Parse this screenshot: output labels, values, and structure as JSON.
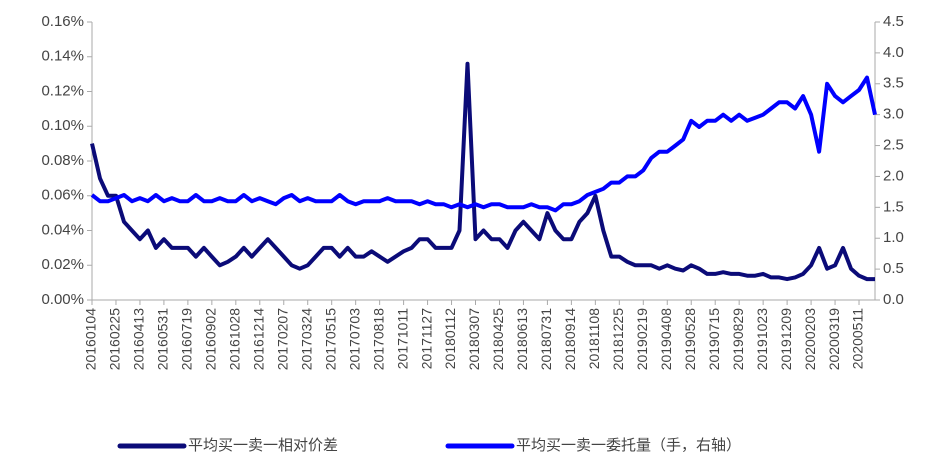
{
  "chart_data": {
    "type": "line",
    "categories": [
      "20160104",
      null,
      null,
      "20160225",
      null,
      null,
      "20160413",
      null,
      null,
      "20160531",
      null,
      null,
      "20160719",
      null,
      null,
      "20160902",
      null,
      null,
      "20161028",
      null,
      null,
      "20161214",
      null,
      null,
      "20170207",
      null,
      null,
      "20170324",
      null,
      null,
      "20170515",
      null,
      null,
      "20170703",
      null,
      null,
      "20170818",
      null,
      null,
      "20171011",
      null,
      null,
      "20171127",
      null,
      null,
      "20180112",
      null,
      null,
      "20180307",
      null,
      null,
      "20180425",
      null,
      null,
      "20180613",
      null,
      null,
      "20180731",
      null,
      null,
      "20180914",
      null,
      null,
      "20181108",
      null,
      null,
      "20181225",
      null,
      null,
      "20190219",
      null,
      null,
      "20190408",
      null,
      null,
      "20190528",
      null,
      null,
      "20190715",
      null,
      null,
      "20190829",
      null,
      null,
      "20191023",
      null,
      null,
      "20191209",
      null,
      null,
      "20200203",
      null,
      null,
      "20200319",
      null,
      null,
      "20200511",
      null,
      null
    ],
    "series": [
      {
        "name": "平均买一卖一相对价差",
        "color": "#0b0b78",
        "axis": "y",
        "values": [
          0.09,
          0.07,
          0.06,
          0.06,
          0.045,
          0.04,
          0.035,
          0.04,
          0.03,
          0.035,
          0.03,
          0.03,
          0.03,
          0.025,
          0.03,
          0.025,
          0.02,
          0.022,
          0.025,
          0.03,
          0.025,
          0.03,
          0.035,
          0.03,
          0.025,
          0.02,
          0.018,
          0.02,
          0.025,
          0.03,
          0.03,
          0.025,
          0.03,
          0.025,
          0.025,
          0.028,
          0.025,
          0.022,
          0.025,
          0.028,
          0.03,
          0.035,
          0.035,
          0.03,
          0.03,
          0.03,
          0.04,
          0.136,
          0.035,
          0.04,
          0.035,
          0.035,
          0.03,
          0.04,
          0.045,
          0.04,
          0.035,
          0.05,
          0.04,
          0.035,
          0.035,
          0.045,
          0.05,
          0.06,
          0.04,
          0.025,
          0.025,
          0.022,
          0.02,
          0.02,
          0.02,
          0.018,
          0.02,
          0.018,
          0.017,
          0.02,
          0.018,
          0.015,
          0.015,
          0.016,
          0.015,
          0.015,
          0.014,
          0.014,
          0.015,
          0.013,
          0.013,
          0.012,
          0.013,
          0.015,
          0.02,
          0.03,
          0.018,
          0.02,
          0.03,
          0.018,
          0.014,
          0.012,
          0.012
        ]
      },
      {
        "name": "平均买一卖一委托量（手，右轴）",
        "color": "#0000ff",
        "axis": "y2",
        "values": [
          1.7,
          1.6,
          1.6,
          1.65,
          1.7,
          1.6,
          1.65,
          1.6,
          1.7,
          1.6,
          1.65,
          1.6,
          1.6,
          1.7,
          1.6,
          1.6,
          1.65,
          1.6,
          1.6,
          1.7,
          1.6,
          1.65,
          1.6,
          1.55,
          1.65,
          1.7,
          1.6,
          1.65,
          1.6,
          1.6,
          1.6,
          1.7,
          1.6,
          1.55,
          1.6,
          1.6,
          1.6,
          1.65,
          1.6,
          1.6,
          1.6,
          1.55,
          1.6,
          1.55,
          1.55,
          1.5,
          1.55,
          1.5,
          1.55,
          1.5,
          1.55,
          1.55,
          1.5,
          1.5,
          1.5,
          1.55,
          1.5,
          1.5,
          1.45,
          1.55,
          1.55,
          1.6,
          1.7,
          1.75,
          1.8,
          1.9,
          1.9,
          2.0,
          2.0,
          2.1,
          2.3,
          2.4,
          2.4,
          2.5,
          2.6,
          2.9,
          2.8,
          2.9,
          2.9,
          3.0,
          2.9,
          3.0,
          2.9,
          2.95,
          3.0,
          3.1,
          3.2,
          3.2,
          3.1,
          3.3,
          3.0,
          2.4,
          3.5,
          3.3,
          3.2,
          3.3,
          3.4,
          3.6,
          3.0
        ]
      }
    ],
    "ylim": [
      0,
      0.16
    ],
    "yticks": [
      {
        "value": 0,
        "label": "0.00%"
      },
      {
        "value": 0.02,
        "label": "0.02%"
      },
      {
        "value": 0.04,
        "label": "0.04%"
      },
      {
        "value": 0.06,
        "label": "0.06%"
      },
      {
        "value": 0.08,
        "label": "0.08%"
      },
      {
        "value": 0.1,
        "label": "0.10%"
      },
      {
        "value": 0.12,
        "label": "0.12%"
      },
      {
        "value": 0.14,
        "label": "0.14%"
      },
      {
        "value": 0.16,
        "label": "0.16%"
      }
    ],
    "y2lim": [
      0,
      4.5
    ],
    "y2ticks": [
      {
        "value": 0,
        "label": "0.0"
      },
      0.5,
      {
        "value": 1,
        "label": "1.0"
      },
      1.5,
      {
        "value": 2,
        "label": "2.0"
      },
      2.5,
      {
        "value": 3,
        "label": "3.0"
      },
      3.5,
      {
        "value": 4,
        "label": "4.0"
      },
      4.5
    ],
    "legend": "bottom"
  }
}
